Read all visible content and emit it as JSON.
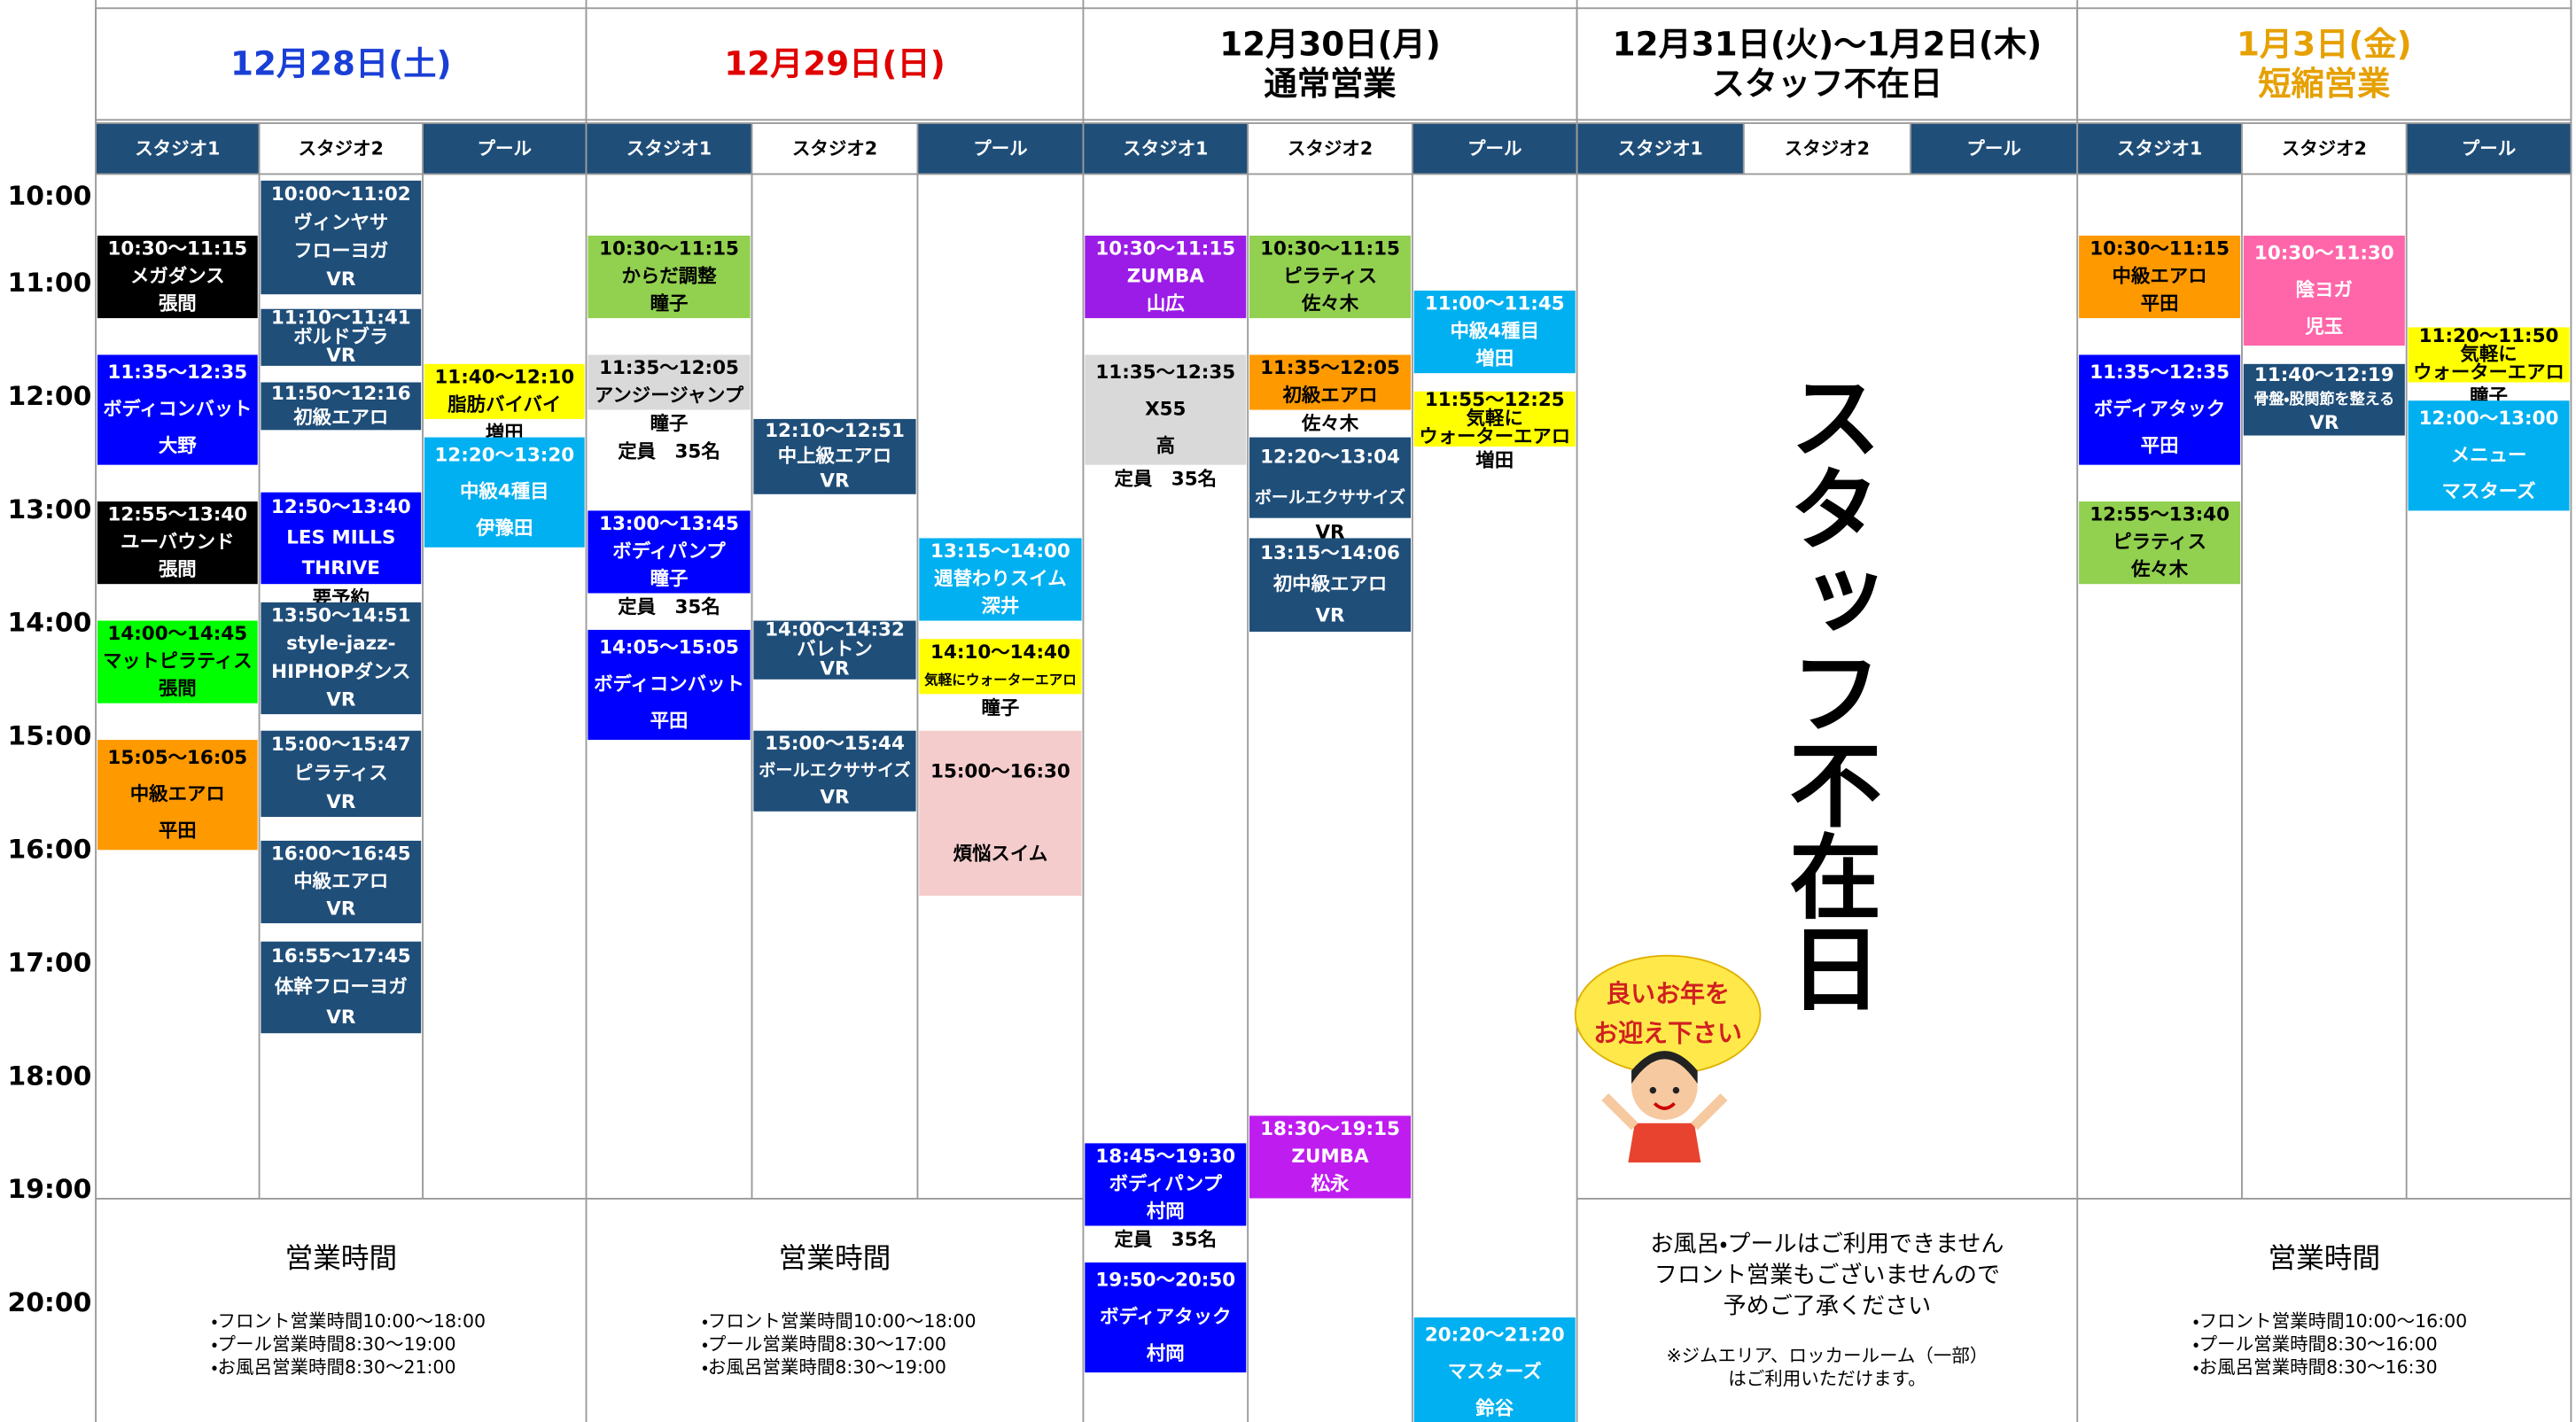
{
  "hours": [
    "10:00",
    "11:00",
    "12:00",
    "13:00",
    "14:00",
    "15:00",
    "16:00",
    "17:00",
    "18:00",
    "19:00",
    "20:00"
  ],
  "days": [
    {
      "title": [
        "12月28日(土)"
      ],
      "title_color": "#1a3fd6",
      "studios": [
        "スタジオ1",
        "スタジオ2",
        "プール"
      ],
      "columns": [
        {
          "events": [
            {
              "lines": [
                "10:30～11:15",
                "メガダンス",
                "張間"
              ],
              "color": "#000000"
            },
            {
              "lines": [
                "11:35～12:35",
                "ボディコンバット",
                "大野"
              ],
              "color": "#0000ff"
            },
            {
              "lines": [
                "12:55～13:40",
                "ユーバウンド",
                "張間"
              ],
              "color": "#000000"
            },
            {
              "lines": [
                "14:00～14:45",
                "マットピラティス",
                "張間"
              ],
              "color": "#00ff00"
            },
            {
              "lines": [
                "15:05～16:05",
                "中級エアロ",
                "平田"
              ],
              "color": "#ff9900"
            }
          ]
        },
        {
          "events": [
            {
              "lines": [
                "10:00～11:02",
                "ヴィンヤサ",
                "フローヨガ",
                "VR"
              ],
              "color": "#1f4e79"
            },
            {
              "lines": [
                "11:10～11:41",
                "ボルドブラ",
                "VR"
              ],
              "color": "#1f4e79"
            },
            {
              "lines": [
                "11:50～12:16",
                "初級エアロ"
              ],
              "color": "#1f4e79"
            },
            {
              "lines": [
                "12:50～13:40",
                "LES MILLS",
                "THRIVE"
              ],
              "color": "#0000ff",
              "note": [
                "要予約"
              ]
            },
            {
              "lines": [
                "13:50～14:51",
                "style-jazz-",
                "HIPHOPダンス",
                "VR"
              ],
              "color": "#1f4e79"
            },
            {
              "lines": [
                "15:00～15:47",
                "ピラティス",
                "VR"
              ],
              "color": "#1f4e79"
            },
            {
              "lines": [
                "16:00～16:45",
                "中級エアロ",
                "VR"
              ],
              "color": "#1f4e79"
            },
            {
              "lines": [
                "16:55～17:45",
                "体幹フローヨガ",
                "VR"
              ],
              "color": "#1f4e79"
            }
          ]
        },
        {
          "events": [
            {
              "lines": [
                "11:40～12:10",
                "脂肪バイバイ"
              ],
              "color": "#ffff00",
              "note": [
                "増田"
              ]
            },
            {
              "lines": [
                "12:20～13:20",
                "中級4種目",
                "伊豫田"
              ],
              "color": "#00b0f0"
            }
          ]
        }
      ],
      "footer": {
        "heading": "営業時間",
        "lines": [
          "・フロント営業時間10:00～18:00",
          "・プール営業時間8:30～19:00",
          "・お風呂営業時間8:30～21:00"
        ]
      }
    },
    {
      "title": [
        "12月29日(日)"
      ],
      "title_color": "#e00000",
      "studios": [
        "スタジオ1",
        "スタジオ2",
        "プール"
      ],
      "columns": [
        {
          "events": [
            {
              "lines": [
                "10:30～11:15",
                "からだ調整",
                "瞳子"
              ],
              "color": "#92d050"
            },
            {
              "lines": [
                "11:35～12:05",
                "アンジージャンプ"
              ],
              "color": "#d9d9d9",
              "note": [
                "瞳子",
                "定員　35名"
              ]
            },
            {
              "lines": [
                "13:00～13:45",
                "ボディパンプ",
                "瞳子"
              ],
              "color": "#0000ff",
              "note": [
                "定員　35名"
              ]
            },
            {
              "lines": [
                "14:05～15:05",
                "ボディコンバット",
                "平田"
              ],
              "color": "#0000ff"
            }
          ]
        },
        {
          "events": [
            {
              "lines": [
                "12:10～12:51",
                "中上級エアロ",
                "VR"
              ],
              "color": "#1f4e79"
            },
            {
              "lines": [
                "14:00～14:32",
                "バレトン",
                "VR"
              ],
              "color": "#1f4e79"
            },
            {
              "lines": [
                "15:00～15:44",
                "ボールエクササイズ",
                "VR"
              ],
              "color": "#1f4e79"
            }
          ]
        },
        {
          "events": [
            {
              "lines": [
                "13:15～14:00",
                "週替わりスイム",
                "深井"
              ],
              "color": "#00b0f0"
            },
            {
              "lines": [
                "14:10～14:40",
                "気軽にウォーターエアロ"
              ],
              "color": "#ffff00",
              "note": [
                "瞳子"
              ]
            },
            {
              "lines": [
                "15:00～16:30",
                "煩悩スイム"
              ],
              "color": "#f4cccc"
            }
          ]
        }
      ],
      "footer": {
        "heading": "営業時間",
        "lines": [
          "・フロント営業時間10:00～18:00",
          "・プール営業時間8:30～17:00",
          "・お風呂営業時間8:30～19:00"
        ]
      }
    },
    {
      "title": [
        "12月30日(月)",
        "通常営業"
      ],
      "title_color": "#000000",
      "studios": [
        "スタジオ1",
        "スタジオ2",
        "プール"
      ],
      "columns": [
        {
          "events": [
            {
              "lines": [
                "10:30～11:15",
                "ZUMBA",
                "山広"
              ],
              "color": "#9b1ce6"
            },
            {
              "lines": [
                "11:35～12:35",
                "X55",
                "高"
              ],
              "color": "#d9d9d9",
              "note": [
                "定員　35名"
              ]
            },
            {
              "lines": [
                "18:45～19:30",
                "ボディパンプ",
                "村岡"
              ],
              "color": "#0000ff",
              "note": [
                "定員　35名"
              ]
            },
            {
              "lines": [
                "19:50～20:50",
                "ボディアタック",
                "村岡"
              ],
              "color": "#0000ff"
            }
          ]
        },
        {
          "events": [
            {
              "lines": [
                "10:30～11:15",
                "ピラティス",
                "佐々木"
              ],
              "color": "#92d050"
            },
            {
              "lines": [
                "11:35～12:05",
                "初級エアロ"
              ],
              "color": "#ff9900",
              "note": [
                "佐々木"
              ]
            },
            {
              "lines": [
                "12:20～13:04",
                "ボールエクササイズ"
              ],
              "color": "#1f4e79",
              "note": [
                "VR"
              ]
            },
            {
              "lines": [
                "13:15～14:06",
                "初中級エアロ",
                "VR"
              ],
              "color": "#1f4e79"
            },
            {
              "lines": [
                "18:30～19:15",
                "ZUMBA",
                "松永"
              ],
              "color": "#bf1cf0"
            }
          ]
        },
        {
          "events": [
            {
              "lines": [
                "11:00～11:45",
                "中級4種目",
                "増田"
              ],
              "color": "#00b0f0"
            },
            {
              "lines": [
                "11:55～12:25",
                "気軽に",
                "ウォーターエアロ"
              ],
              "color": "#ffff00",
              "note": [
                "増田"
              ]
            },
            {
              "lines": [
                "20:20～21:20",
                "マスターズ",
                "鈴谷"
              ],
              "color": "#00b0f0"
            }
          ]
        }
      ]
    },
    {
      "title": [
        "12月31日(火)～1月2日(木)",
        "スタッフ不在日"
      ],
      "title_color": "#000000",
      "studios": [
        "スタジオ1",
        "スタジオ2",
        "プール"
      ],
      "notice": "スタッフ不在日",
      "greeting": [
        "良いお年を",
        "お迎え下さい"
      ],
      "footer": {
        "lines": [
          "お風呂・プールはご利用できません",
          "フロント営業もございませんので",
          "予めご了承ください"
        ],
        "small": [
          "※ジムエリア、ロッカールーム（一部）",
          "はご利用いただけます。"
        ]
      }
    },
    {
      "title": [
        "1月3日(金)",
        "短縮営業"
      ],
      "title_color": "#e6a000",
      "studios": [
        "スタジオ1",
        "スタジオ2",
        "プール"
      ],
      "columns": [
        {
          "events": [
            {
              "lines": [
                "10:30～11:15",
                "中級エアロ",
                "平田"
              ],
              "color": "#ff9900"
            },
            {
              "lines": [
                "11:35～12:35",
                "ボディアタック",
                "平田"
              ],
              "color": "#0000ff"
            },
            {
              "lines": [
                "12:55～13:40",
                "ピラティス",
                "佐々木"
              ],
              "color": "#92d050"
            }
          ]
        },
        {
          "events": [
            {
              "lines": [
                "10:30～11:30",
                "陰ヨガ",
                "児玉"
              ],
              "color": "#ff66aa"
            },
            {
              "lines": [
                "11:40～12:19",
                "骨盤・股関節を整える",
                "VR"
              ],
              "color": "#1f4e79"
            }
          ]
        },
        {
          "events": [
            {
              "lines": [
                "11:20～11:50",
                "気軽に",
                "ウォーターエアロ"
              ],
              "color": "#ffff00",
              "note": [
                "瞳子"
              ]
            },
            {
              "lines": [
                "12:00～13:00",
                "メニュー",
                "マスターズ"
              ],
              "color": "#00b0f0"
            }
          ]
        }
      ],
      "footer": {
        "heading": "営業時間",
        "lines": [
          "・フロント営業時間10:00～16:00",
          "・プール営業時間8:30～16:00",
          "・お風呂営業時間8:30～16:30"
        ]
      }
    }
  ]
}
